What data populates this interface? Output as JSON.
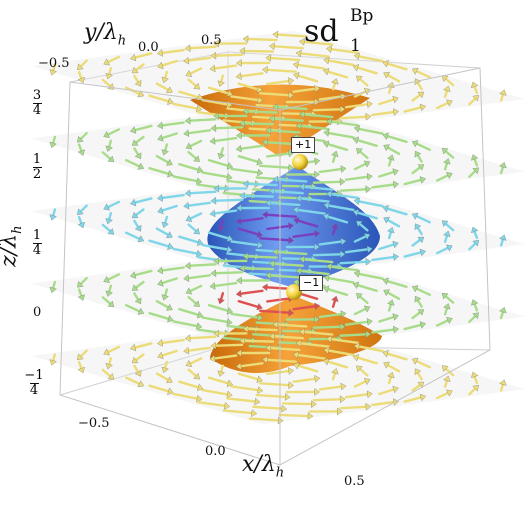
{
  "title": {
    "main": "sd",
    "superscript": "Bp",
    "subscript": "1"
  },
  "axes": {
    "x": {
      "label": "x/λ",
      "label_sub": "h",
      "ticks": [
        "−0.5",
        "0.0",
        "0.5"
      ]
    },
    "y": {
      "label": "y/λ",
      "label_sub": "h",
      "ticks": [
        "−0.5",
        "0.0",
        "0.5"
      ]
    },
    "z": {
      "label": "z/λ",
      "label_sub": "h",
      "ticks": [
        {
          "num": "3",
          "den": "4"
        },
        {
          "num": "1",
          "den": "2"
        },
        {
          "num": "1",
          "den": "4"
        },
        {
          "value": "0"
        },
        {
          "num": "1",
          "den": "4",
          "sign": "−"
        }
      ]
    }
  },
  "defects": [
    {
      "label": "+1"
    },
    {
      "label": "−1"
    }
  ],
  "colors": {
    "surface_orange": "#f08c1a",
    "surface_blue": "#3f74d8",
    "layer_green": "#a8dc8a",
    "layer_yellow": "#ecdc78",
    "layer_cyan": "#7fd6e8",
    "layer_purple": "#7a3fc0",
    "layer_red": "#e05050",
    "defect_point": "#f2d23a",
    "box_line": "#c8c8c8"
  }
}
